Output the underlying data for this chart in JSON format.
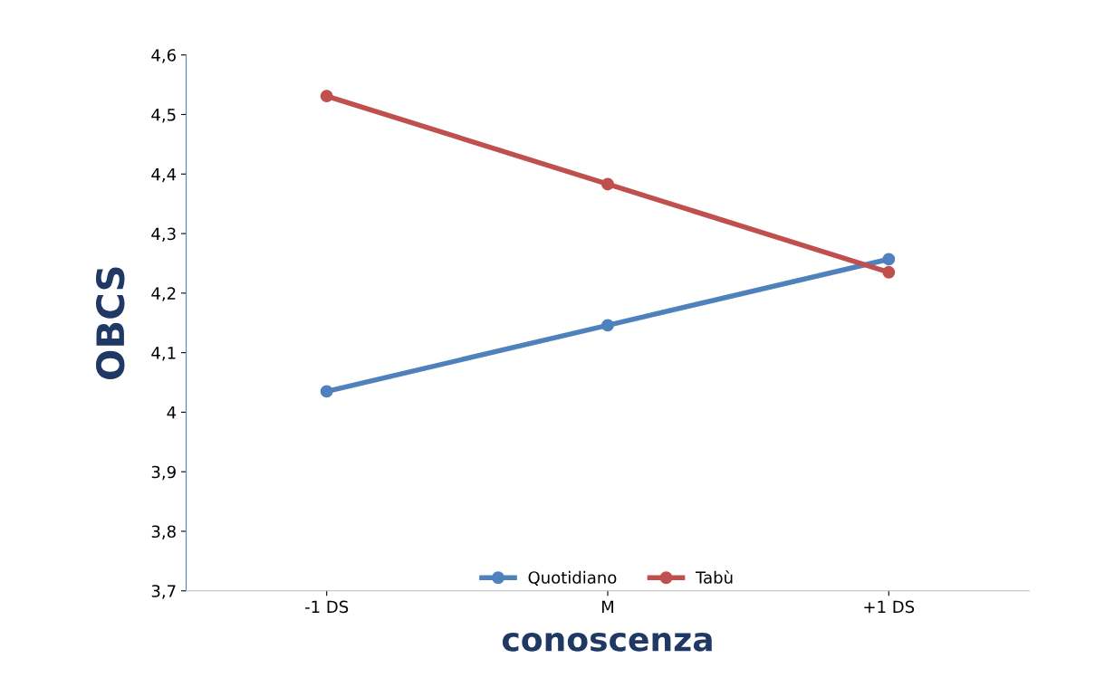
{
  "chart_data": {
    "type": "line",
    "xlabel": "conoscenza",
    "ylabel": "OBCS",
    "x": [
      -1,
      0,
      1
    ],
    "xlim": [
      -1.5,
      1.5
    ],
    "xticks": [
      {
        "value": -1,
        "label": "-1 DS"
      },
      {
        "value": 0,
        "label": "M"
      },
      {
        "value": 1,
        "label": "+1 DS"
      }
    ],
    "series": [
      {
        "name": "Quotidiano",
        "color": "#4f81bd",
        "values": [
          4.035,
          4.146,
          4.257
        ]
      },
      {
        "name": "Tabù",
        "color": "#c0504d",
        "values": [
          4.531,
          4.383,
          4.235
        ]
      }
    ],
    "ylim": [
      3.7,
      4.6
    ],
    "yticks": [
      {
        "value": 3.7,
        "label": "3,7"
      },
      {
        "value": 3.8,
        "label": "3,8"
      },
      {
        "value": 3.9,
        "label": "3,9"
      },
      {
        "value": 4,
        "label": "4"
      },
      {
        "value": 4.1,
        "label": "4,1"
      },
      {
        "value": 4.2,
        "label": "4,2"
      },
      {
        "value": 4.3,
        "label": "4,3"
      },
      {
        "value": 4.4,
        "label": "4,4"
      },
      {
        "value": 4.5,
        "label": "4,5"
      },
      {
        "value": 4.6,
        "label": "4,6"
      }
    ],
    "grid": false,
    "legend": "bottom",
    "marker": "circle",
    "line_style": "solid"
  }
}
